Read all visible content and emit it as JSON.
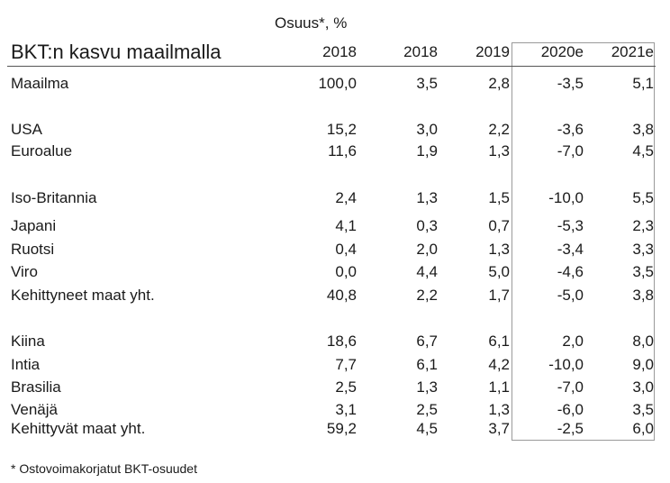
{
  "title": "BKT:n kasvu maailmalla",
  "share_label": "Osuus*, %",
  "columns": [
    "2018",
    "2018",
    "2019",
    "2020e",
    "2021e"
  ],
  "rows": [
    {
      "label": "Maailma",
      "values": [
        "100,0",
        "3,5",
        "2,8",
        "-3,5",
        "5,1"
      ]
    },
    {
      "label": "USA",
      "values": [
        "15,2",
        "3,0",
        "2,2",
        "-3,6",
        "3,8"
      ]
    },
    {
      "label": "Euroalue",
      "values": [
        "11,6",
        "1,9",
        "1,3",
        "-7,0",
        "4,5"
      ]
    },
    {
      "label": "Iso-Britannia",
      "values": [
        "2,4",
        "1,3",
        "1,5",
        "-10,0",
        "5,5"
      ]
    },
    {
      "label": "Japani",
      "values": [
        "4,1",
        "0,3",
        "0,7",
        "-5,3",
        "2,3"
      ]
    },
    {
      "label": "Ruotsi",
      "values": [
        "0,4",
        "2,0",
        "1,3",
        "-3,4",
        "3,3"
      ]
    },
    {
      "label": "Viro",
      "values": [
        "0,0",
        "4,4",
        "5,0",
        "-4,6",
        "3,5"
      ]
    },
    {
      "label": "Kehittyneet maat yht.",
      "values": [
        "40,8",
        "2,2",
        "1,7",
        "-5,0",
        "3,8"
      ]
    },
    {
      "label": "Kiina",
      "values": [
        "18,6",
        "6,7",
        "6,1",
        "2,0",
        "8,0"
      ]
    },
    {
      "label": "Intia",
      "values": [
        "7,7",
        "6,1",
        "4,2",
        "-10,0",
        "9,0"
      ]
    },
    {
      "label": "Brasilia",
      "values": [
        "2,5",
        "1,3",
        "1,1",
        "-7,0",
        "3,0"
      ]
    },
    {
      "label": "Venäjä",
      "values": [
        "3,1",
        "2,5",
        "1,3",
        "-6,0",
        "3,5"
      ]
    },
    {
      "label": "Kehittyvät maat yht.",
      "values": [
        "59,2",
        "4,5",
        "3,7",
        "-2,5",
        "6,0"
      ]
    }
  ],
  "footnote": "* Ostovoimakorjatut BKT-osuudet"
}
